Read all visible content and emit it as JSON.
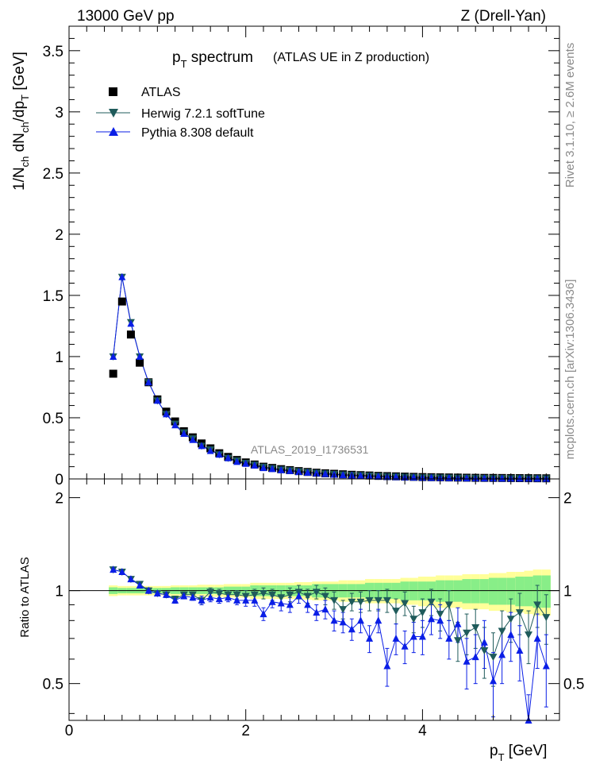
{
  "header": {
    "left": "13000 GeV pp",
    "right": "Z (Drell-Yan)"
  },
  "title": {
    "main_prefix": "p",
    "main_sub": "T",
    "main_suffix": " spectrum",
    "detail": "(ATLAS UE in Z production)"
  },
  "side_text": {
    "rivet": "Rivet 3.1.10, ≥ 2.6M events",
    "mcplots": "mcplots.cern.ch [arXiv:1306.3436]"
  },
  "watermark": "ATLAS_2019_I1736531",
  "legend": [
    {
      "label": "ATLAS",
      "marker": "square"
    },
    {
      "label": "Herwig 7.2.1 softTune",
      "marker": "triangle-down"
    },
    {
      "label": "Pythia 8.308 default",
      "marker": "triangle-up"
    }
  ],
  "colors": {
    "atlas": "#000000",
    "herwig": "#1f5b5b",
    "pythia": "#0a1ee6",
    "band_inner": "#88ee88",
    "band_outer": "#ffff99"
  },
  "axis_labels": {
    "ylabel_main": "1/N_ch dN_ch/dp_T [GeV]",
    "ylabel_ratio": "Ratio to ATLAS",
    "xlabel": "p_T [GeV]"
  },
  "ticks": {
    "main_y": [
      "0",
      "0.5",
      "1",
      "1.5",
      "2",
      "2.5",
      "3",
      "3.5"
    ],
    "ratio_y": [
      "0.5",
      "1",
      "2"
    ],
    "x": [
      "0",
      "2",
      "4"
    ]
  },
  "chart_data": {
    "type": "scatter",
    "xlim": [
      0,
      5.55
    ],
    "main_ylim": [
      0,
      3.7
    ],
    "ratio_ylim": [
      0.38,
      2.3
    ],
    "ratio_scale": "log",
    "grid": false,
    "legend_position": "top-left",
    "x": [
      0.5,
      0.6,
      0.7,
      0.8,
      0.9,
      1.0,
      1.1,
      1.2,
      1.3,
      1.4,
      1.5,
      1.6,
      1.7,
      1.8,
      1.9,
      2.0,
      2.1,
      2.2,
      2.3,
      2.4,
      2.5,
      2.6,
      2.7,
      2.8,
      2.9,
      3.0,
      3.1,
      3.2,
      3.3,
      3.4,
      3.5,
      3.6,
      3.7,
      3.8,
      3.9,
      4.0,
      4.1,
      4.2,
      4.3,
      4.4,
      4.5,
      4.6,
      4.7,
      4.8,
      4.9,
      5.0,
      5.1,
      5.2,
      5.3,
      5.4
    ],
    "series": [
      {
        "name": "ATLAS",
        "values": [
          0.86,
          1.45,
          1.18,
          0.95,
          0.79,
          0.65,
          0.55,
          0.47,
          0.39,
          0.34,
          0.29,
          0.25,
          0.21,
          0.18,
          0.155,
          0.135,
          0.118,
          0.1,
          0.09,
          0.08,
          0.072,
          0.064,
          0.057,
          0.051,
          0.046,
          0.042,
          0.038,
          0.034,
          0.031,
          0.028,
          0.025,
          0.023,
          0.021,
          0.019,
          0.017,
          0.015,
          0.014,
          0.013,
          0.012,
          0.011,
          0.01,
          0.009,
          0.0085,
          0.008,
          0.0075,
          0.007,
          0.0065,
          0.006,
          0.0055,
          0.005
        ]
      },
      {
        "name": "Herwig 7.2.1 softTune",
        "values": [
          1.0,
          1.65,
          1.28,
          1.0,
          0.79,
          0.64,
          0.53,
          0.45,
          0.38,
          0.33,
          0.27,
          0.24,
          0.2,
          0.17,
          0.15,
          0.13,
          0.115,
          0.098,
          0.087,
          0.076,
          0.07,
          0.062,
          0.055,
          0.049,
          0.044,
          0.039,
          0.035,
          0.031,
          0.029,
          0.026,
          0.023,
          0.021,
          0.019,
          0.017,
          0.015,
          0.013,
          0.012,
          0.011,
          0.01,
          0.009,
          0.008,
          0.007,
          0.006,
          0.006,
          0.0055,
          0.005,
          0.0048,
          0.0044,
          0.004,
          0.0036
        ]
      },
      {
        "name": "Pythia 8.308 default",
        "values": [
          1.0,
          1.65,
          1.27,
          1.0,
          0.79,
          0.64,
          0.53,
          0.44,
          0.37,
          0.32,
          0.27,
          0.23,
          0.2,
          0.17,
          0.14,
          0.125,
          0.11,
          0.09,
          0.082,
          0.072,
          0.066,
          0.058,
          0.052,
          0.046,
          0.041,
          0.036,
          0.032,
          0.029,
          0.026,
          0.023,
          0.02,
          0.018,
          0.016,
          0.014,
          0.012,
          0.011,
          0.01,
          0.009,
          0.008,
          0.007,
          0.006,
          0.0055,
          0.005,
          0.0048,
          0.0044,
          0.004,
          0.0038,
          0.0034,
          0.003,
          0.0028
        ]
      }
    ],
    "ratio": {
      "herwig": [
        1.17,
        1.15,
        1.09,
        1.05,
        1.0,
        0.98,
        0.97,
        0.94,
        0.97,
        0.97,
        0.93,
        0.99,
        0.98,
        0.97,
        0.97,
        0.96,
        0.97,
        0.98,
        0.97,
        0.95,
        0.97,
        0.99,
        0.96,
        0.99,
        0.96,
        0.93,
        0.87,
        0.92,
        0.92,
        0.93,
        0.93,
        0.93,
        0.86,
        0.91,
        0.81,
        0.85,
        0.92,
        0.84,
        0.9,
        0.69,
        0.73,
        0.76,
        0.64,
        0.61,
        0.74,
        0.81,
        0.85,
        0.72,
        0.9,
        0.82
      ],
      "herwig_err": [
        0.02,
        0.02,
        0.02,
        0.02,
        0.02,
        0.02,
        0.02,
        0.02,
        0.02,
        0.02,
        0.03,
        0.03,
        0.03,
        0.03,
        0.03,
        0.04,
        0.04,
        0.04,
        0.04,
        0.05,
        0.05,
        0.05,
        0.05,
        0.05,
        0.06,
        0.06,
        0.06,
        0.06,
        0.07,
        0.07,
        0.07,
        0.08,
        0.08,
        0.08,
        0.08,
        0.09,
        0.09,
        0.1,
        0.1,
        0.1,
        0.11,
        0.11,
        0.12,
        0.12,
        0.12,
        0.13,
        0.13,
        0.14,
        0.14,
        0.15
      ],
      "pythia": [
        1.17,
        1.15,
        1.09,
        1.04,
        1.0,
        0.98,
        0.97,
        0.93,
        0.96,
        0.95,
        0.93,
        0.95,
        0.94,
        0.95,
        0.93,
        0.93,
        0.93,
        0.84,
        0.92,
        0.91,
        0.9,
        0.96,
        0.9,
        0.85,
        0.87,
        0.8,
        0.79,
        0.75,
        0.8,
        0.7,
        0.8,
        0.57,
        0.7,
        0.66,
        0.71,
        0.71,
        0.81,
        0.8,
        0.7,
        0.78,
        0.59,
        0.61,
        0.68,
        0.51,
        0.62,
        0.72,
        0.64,
        0.32,
        0.7,
        0.57
      ],
      "pythia_err": [
        0.02,
        0.02,
        0.02,
        0.02,
        0.02,
        0.02,
        0.02,
        0.02,
        0.02,
        0.02,
        0.03,
        0.03,
        0.03,
        0.03,
        0.03,
        0.04,
        0.04,
        0.04,
        0.04,
        0.05,
        0.05,
        0.05,
        0.05,
        0.05,
        0.06,
        0.06,
        0.06,
        0.06,
        0.07,
        0.07,
        0.07,
        0.08,
        0.08,
        0.08,
        0.08,
        0.09,
        0.09,
        0.1,
        0.1,
        0.1,
        0.11,
        0.11,
        0.12,
        0.12,
        0.12,
        0.13,
        0.13,
        0.14,
        0.14,
        0.15
      ],
      "band_inner": [
        0.025,
        0.02,
        0.02,
        0.02,
        0.02,
        0.02,
        0.02,
        0.025,
        0.025,
        0.025,
        0.025,
        0.025,
        0.025,
        0.03,
        0.03,
        0.03,
        0.04,
        0.04,
        0.04,
        0.04,
        0.04,
        0.04,
        0.04,
        0.05,
        0.05,
        0.05,
        0.05,
        0.05,
        0.05,
        0.06,
        0.06,
        0.06,
        0.06,
        0.07,
        0.07,
        0.07,
        0.07,
        0.08,
        0.08,
        0.08,
        0.09,
        0.09,
        0.09,
        0.1,
        0.1,
        0.1,
        0.11,
        0.11,
        0.12,
        0.12
      ],
      "band_outer": [
        0.04,
        0.035,
        0.035,
        0.035,
        0.035,
        0.035,
        0.035,
        0.04,
        0.04,
        0.04,
        0.045,
        0.045,
        0.045,
        0.05,
        0.05,
        0.05,
        0.06,
        0.06,
        0.06,
        0.06,
        0.06,
        0.065,
        0.065,
        0.07,
        0.07,
        0.07,
        0.08,
        0.08,
        0.08,
        0.09,
        0.09,
        0.09,
        0.09,
        0.1,
        0.1,
        0.11,
        0.11,
        0.12,
        0.12,
        0.12,
        0.13,
        0.13,
        0.13,
        0.14,
        0.14,
        0.15,
        0.15,
        0.16,
        0.17,
        0.17
      ]
    }
  }
}
